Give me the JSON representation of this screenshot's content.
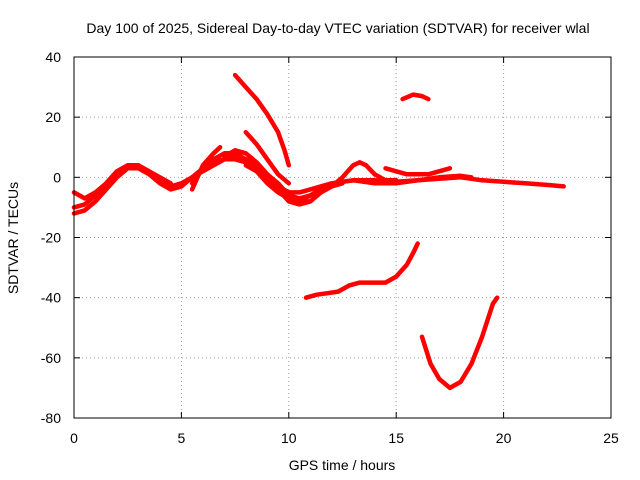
{
  "chart_data": {
    "type": "line",
    "title": "Day 100 of 2025, Sidereal Day-to-day VTEC variation (SDTVAR) for receiver wlal",
    "xlabel": "GPS time / hours",
    "ylabel": "SDTVAR / TECUs",
    "xlim": [
      0,
      25
    ],
    "ylim": [
      -80,
      40
    ],
    "xticks": [
      0,
      5,
      10,
      15,
      20,
      25
    ],
    "yticks": [
      -80,
      -60,
      -40,
      -20,
      0,
      20,
      40
    ],
    "grid": true,
    "color": "#ff0000",
    "series": [
      {
        "name": "arc-1",
        "points": [
          [
            0,
            -5
          ],
          [
            0.5,
            -7
          ],
          [
            1,
            -5
          ],
          [
            1.5,
            -2
          ],
          [
            2,
            2
          ],
          [
            2.5,
            4
          ],
          [
            3,
            4
          ],
          [
            3.5,
            1
          ],
          [
            4,
            -2
          ],
          [
            4.5,
            -4
          ],
          [
            5,
            -3
          ],
          [
            5.5,
            0
          ],
          [
            6,
            3
          ],
          [
            6.5,
            5
          ],
          [
            7,
            6
          ],
          [
            7.5,
            6
          ],
          [
            8,
            5
          ],
          [
            8.5,
            3
          ],
          [
            9,
            0
          ],
          [
            9.5,
            -3
          ],
          [
            10,
            -5
          ],
          [
            10.5,
            -5
          ],
          [
            11,
            -4
          ],
          [
            12,
            -2
          ],
          [
            13,
            -1
          ],
          [
            14,
            -1
          ],
          [
            15,
            -1.5
          ],
          [
            16,
            -1
          ],
          [
            17,
            -0.5
          ],
          [
            18,
            0
          ],
          [
            19,
            -1
          ],
          [
            20,
            -1.5
          ],
          [
            21,
            -2
          ],
          [
            22,
            -2.5
          ],
          [
            22.8,
            -3
          ]
        ]
      },
      {
        "name": "arc-2",
        "points": [
          [
            0,
            -12
          ],
          [
            0.5,
            -11
          ],
          [
            1,
            -8
          ],
          [
            1.5,
            -4
          ],
          [
            2,
            0
          ],
          [
            2.5,
            3
          ],
          [
            3,
            3
          ],
          [
            3.5,
            1
          ],
          [
            4,
            -1
          ],
          [
            4.5,
            -3
          ],
          [
            5,
            -2
          ],
          [
            5.5,
            0
          ],
          [
            6,
            2
          ],
          [
            6.5,
            4
          ],
          [
            7,
            6
          ],
          [
            7.5,
            7
          ],
          [
            8,
            6
          ],
          [
            8.5,
            4
          ],
          [
            9,
            1
          ],
          [
            9.5,
            -2
          ],
          [
            10,
            -6
          ],
          [
            10.5,
            -7
          ],
          [
            11,
            -6
          ],
          [
            11.5,
            -4
          ],
          [
            12,
            -2
          ],
          [
            13,
            -1
          ]
        ]
      },
      {
        "name": "arc-3",
        "points": [
          [
            0,
            -10
          ],
          [
            0.5,
            -9
          ],
          [
            1,
            -6
          ],
          [
            1.5,
            -2
          ],
          [
            2,
            2
          ],
          [
            2.5,
            4
          ],
          [
            3,
            4
          ],
          [
            3.5,
            2
          ],
          [
            4,
            0
          ],
          [
            4.5,
            -2
          ]
        ]
      },
      {
        "name": "arc-4",
        "points": [
          [
            5.5,
            -4
          ],
          [
            6,
            4
          ],
          [
            6.5,
            8
          ],
          [
            6.8,
            10
          ]
        ]
      },
      {
        "name": "arc-5",
        "points": [
          [
            5.5,
            -2
          ],
          [
            6,
            3
          ],
          [
            6.5,
            6
          ],
          [
            7,
            8
          ],
          [
            7.5,
            8
          ],
          [
            8,
            6
          ],
          [
            8.5,
            2
          ],
          [
            9,
            -2
          ],
          [
            9.5,
            -5
          ],
          [
            10,
            -7
          ],
          [
            10.5,
            -8
          ],
          [
            11,
            -6
          ]
        ]
      },
      {
        "name": "arc-6",
        "points": [
          [
            7,
            7
          ],
          [
            7.5,
            9
          ],
          [
            8,
            8
          ],
          [
            8.5,
            5
          ],
          [
            9,
            1
          ],
          [
            9.5,
            -3
          ],
          [
            10,
            -6
          ],
          [
            10.5,
            -8
          ],
          [
            11,
            -8
          ]
        ]
      },
      {
        "name": "arc-7",
        "points": [
          [
            7.5,
            34
          ],
          [
            8,
            30
          ],
          [
            8.5,
            26
          ],
          [
            9,
            21
          ],
          [
            9.5,
            15
          ],
          [
            9.8,
            9
          ],
          [
            10,
            4
          ]
        ]
      },
      {
        "name": "arc-8",
        "points": [
          [
            8,
            15
          ],
          [
            8.5,
            11
          ],
          [
            9,
            6
          ],
          [
            9.5,
            1
          ],
          [
            10,
            -2
          ]
        ]
      },
      {
        "name": "arc-9",
        "points": [
          [
            8,
            4
          ],
          [
            8.5,
            2
          ],
          [
            9,
            0
          ],
          [
            9.5,
            -4
          ],
          [
            10,
            -8
          ],
          [
            10.5,
            -9
          ],
          [
            11,
            -8
          ],
          [
            11.5,
            -5
          ],
          [
            12,
            -3
          ],
          [
            12.5,
            -2
          ]
        ]
      },
      {
        "name": "arc-10",
        "points": [
          [
            12,
            -3
          ],
          [
            12.5,
            0
          ],
          [
            13,
            4
          ],
          [
            13.3,
            5
          ],
          [
            13.6,
            4
          ],
          [
            14,
            1
          ],
          [
            14.5,
            -1
          ],
          [
            15,
            -1
          ]
        ]
      },
      {
        "name": "arc-11",
        "points": [
          [
            13,
            -1
          ],
          [
            14,
            -2
          ],
          [
            15,
            -2
          ],
          [
            16,
            -1
          ],
          [
            17,
            0
          ],
          [
            18,
            0.5
          ],
          [
            18.5,
            0
          ]
        ]
      },
      {
        "name": "arc-12",
        "points": [
          [
            14.5,
            3
          ],
          [
            15.5,
            1
          ],
          [
            16.5,
            1
          ],
          [
            17.5,
            3
          ]
        ]
      },
      {
        "name": "arc-13",
        "points": [
          [
            15.3,
            26
          ],
          [
            15.8,
            27.5
          ],
          [
            16.2,
            27
          ],
          [
            16.5,
            26
          ]
        ]
      },
      {
        "name": "arc-14",
        "points": [
          [
            10.8,
            -40
          ],
          [
            11.3,
            -39
          ],
          [
            11.8,
            -38.5
          ],
          [
            12.3,
            -38
          ],
          [
            12.8,
            -36
          ],
          [
            13.3,
            -35
          ],
          [
            14,
            -35
          ],
          [
            14.5,
            -35
          ],
          [
            15,
            -33
          ],
          [
            15.5,
            -29
          ],
          [
            15.8,
            -25
          ],
          [
            16,
            -22
          ]
        ]
      },
      {
        "name": "arc-15",
        "points": [
          [
            16.2,
            -53
          ],
          [
            16.6,
            -62
          ],
          [
            17,
            -67
          ],
          [
            17.5,
            -70
          ],
          [
            18,
            -68
          ],
          [
            18.5,
            -62
          ],
          [
            19,
            -53
          ],
          [
            19.5,
            -42
          ],
          [
            19.7,
            -40
          ]
        ]
      }
    ]
  }
}
